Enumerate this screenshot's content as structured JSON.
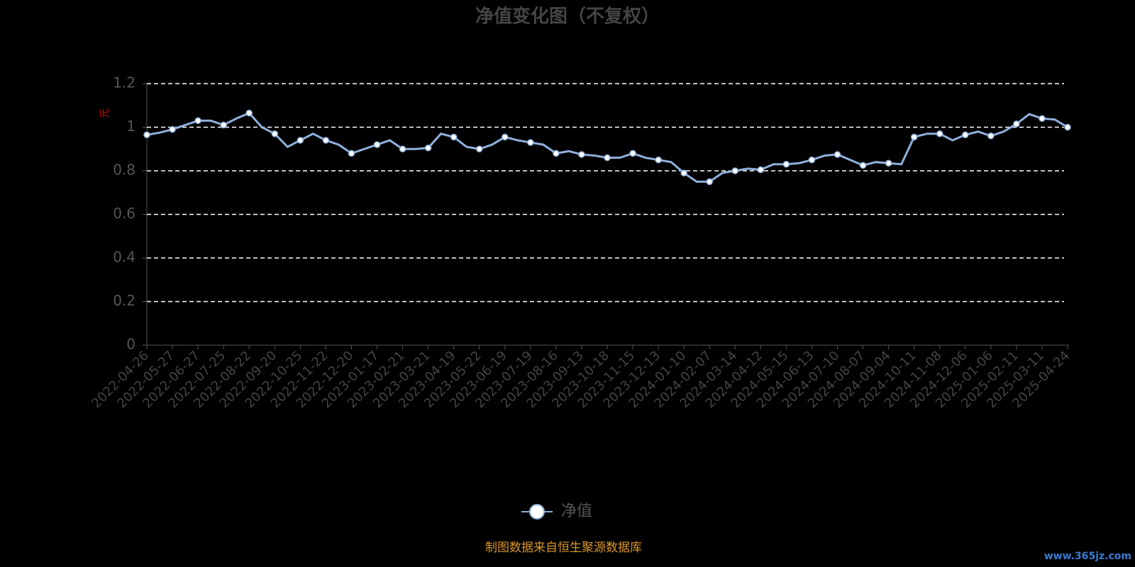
{
  "chart_data": {
    "type": "line",
    "title": "净值变化图（不复权）",
    "y_label": "元",
    "categories": [
      "2022-04-26",
      null,
      "2022-05-27",
      null,
      "2022-06-27",
      null,
      "2022-07-25",
      null,
      "2022-08-22",
      null,
      "2022-09-20",
      null,
      "2022-10-25",
      null,
      "2022-11-22",
      null,
      "2022-12-20",
      null,
      "2023-01-17",
      null,
      "2023-02-21",
      null,
      "2023-03-21",
      null,
      "2023-04-19",
      null,
      "2023-05-22",
      null,
      "2023-06-19",
      null,
      "2023-07-19",
      null,
      "2023-08-16",
      null,
      "2023-09-13",
      null,
      "2023-10-18",
      null,
      "2023-11-15",
      null,
      "2023-12-13",
      null,
      "2024-01-10",
      null,
      "2024-02-07",
      null,
      "2024-03-14",
      null,
      "2024-04-12",
      null,
      "2024-05-15",
      null,
      "2024-06-13",
      null,
      "2024-07-10",
      null,
      "2024-08-07",
      null,
      "2024-09-04",
      null,
      "2024-10-11",
      null,
      "2024-11-08",
      null,
      "2024-12-06",
      null,
      "2025-01-06",
      null,
      "2025-02-11",
      null,
      "2025-03-11",
      null,
      "2025-04-24"
    ],
    "series": [
      {
        "name": "净值",
        "color": "#8fb0dc",
        "values": [
          0.965,
          0.975,
          0.99,
          1.01,
          1.03,
          1.03,
          1.01,
          1.04,
          1.065,
          1.0,
          0.97,
          0.91,
          0.94,
          0.97,
          0.94,
          0.92,
          0.88,
          0.9,
          0.92,
          0.94,
          0.9,
          0.9,
          0.905,
          0.97,
          0.955,
          0.91,
          0.9,
          0.92,
          0.955,
          0.94,
          0.93,
          0.92,
          0.88,
          0.89,
          0.875,
          0.87,
          0.86,
          0.86,
          0.88,
          0.86,
          0.85,
          0.84,
          0.79,
          0.75,
          0.75,
          0.79,
          0.8,
          0.81,
          0.805,
          0.83,
          0.83,
          0.835,
          0.85,
          0.87,
          0.875,
          0.85,
          0.825,
          0.84,
          0.835,
          0.83,
          0.955,
          0.97,
          0.97,
          0.94,
          0.965,
          0.98,
          0.96,
          0.98,
          1.015,
          1.06,
          1.04,
          1.035,
          1.0
        ]
      }
    ],
    "ylim": [
      0,
      1.2
    ],
    "yticks": [
      0,
      0.2,
      0.4,
      0.6,
      0.8,
      1,
      1.2
    ],
    "grid": true,
    "source": "制图数据来自恒生聚源数据库",
    "watermark": "www.365jz.com"
  }
}
